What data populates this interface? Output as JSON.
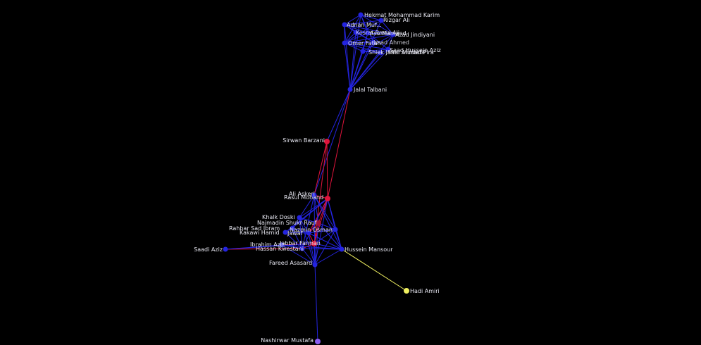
{
  "graph": {
    "colors": {
      "blue": "#2424e0",
      "red": "#e0143c",
      "yellow": "#f0f060",
      "violet": "#8a5cf0",
      "maroon": "#a0103a"
    },
    "nodes": [
      {
        "id": "hekmat",
        "label": "Hekmat Mohammad Karim",
        "color": "blue"
      },
      {
        "id": "rizgar",
        "label": "Rizgar Ali",
        "color": "blue"
      },
      {
        "id": "adnan",
        "label": "Adnan Muf...",
        "color": "blue"
      },
      {
        "id": "aso",
        "label": "Aso Mamand",
        "color": "blue"
      },
      {
        "id": "azad",
        "label": "Azad Jindiyani",
        "color": "blue"
      },
      {
        "id": "omer",
        "label": "Omer Fatah",
        "color": "blue"
      },
      {
        "id": "shiek",
        "label": "Shiek Jaffar Mustafa",
        "color": "blue"
      },
      {
        "id": "sadi",
        "label": "Sadi Ahmad Pira",
        "color": "blue"
      },
      {
        "id": "kosrat",
        "label": "Kosrat Rasul Ali",
        "color": "blue"
      },
      {
        "id": "imad",
        "label": "Imad Ahmed",
        "color": "blue"
      },
      {
        "id": "saad",
        "label": "Saad Hussein Aziz",
        "color": "blue"
      },
      {
        "id": "jalal",
        "label": "Jalal Talbani",
        "color": "blue"
      },
      {
        "id": "sirwan",
        "label": "Sirwan Barzani",
        "color": "red"
      },
      {
        "id": "ali",
        "label": "Ali Askeri",
        "color": "blue"
      },
      {
        "id": "rasul",
        "label": "Rasul Mohand",
        "color": "red"
      },
      {
        "id": "khalk",
        "label": "Khalk Doski",
        "color": "blue"
      },
      {
        "id": "najmadin",
        "label": "Najmadin Shukr Rauf",
        "color": "maroon"
      },
      {
        "id": "rahbar",
        "label": "Rahbar Sad Ibram",
        "color": "blue"
      },
      {
        "id": "nazmin",
        "label": "Nazmin Osman",
        "color": "blue"
      },
      {
        "id": "kakawi",
        "label": "Kakawi Hamid",
        "color": "blue"
      },
      {
        "id": "jawaf",
        "label": "Jawaf",
        "color": "blue"
      },
      {
        "id": "jabbar",
        "label": "Jabbar Farman",
        "color": "red"
      },
      {
        "id": "ibrahim",
        "label": "Ibrahim Aziz",
        "color": "blue"
      },
      {
        "id": "hassan",
        "label": "Hassan Kwestani",
        "color": "blue"
      },
      {
        "id": "saadi",
        "label": "Saadi Aziz",
        "color": "blue"
      },
      {
        "id": "hussein",
        "label": "Hussein Mansour",
        "color": "blue"
      },
      {
        "id": "fareed",
        "label": "Fareed Asasard",
        "color": "blue"
      },
      {
        "id": "hadi",
        "label": "Hadi Amiri",
        "color": "yellow"
      },
      {
        "id": "nashirwar",
        "label": "Nashirwar Mustafa",
        "color": "violet"
      }
    ],
    "edges": [
      {
        "from": "jalal",
        "to": "hekmat",
        "color": "blue"
      },
      {
        "from": "jalal",
        "to": "rizgar",
        "color": "blue"
      },
      {
        "from": "jalal",
        "to": "adnan",
        "color": "blue"
      },
      {
        "from": "jalal",
        "to": "aso",
        "color": "blue"
      },
      {
        "from": "jalal",
        "to": "azad",
        "color": "blue"
      },
      {
        "from": "jalal",
        "to": "omer",
        "color": "blue"
      },
      {
        "from": "jalal",
        "to": "shiek",
        "color": "blue"
      },
      {
        "from": "jalal",
        "to": "sadi",
        "color": "blue"
      },
      {
        "from": "jalal",
        "to": "kosrat",
        "color": "blue"
      },
      {
        "from": "jalal",
        "to": "imad",
        "color": "blue"
      },
      {
        "from": "jalal",
        "to": "saad",
        "color": "blue"
      },
      {
        "from": "adnan",
        "to": "hekmat",
        "color": "blue"
      },
      {
        "from": "adnan",
        "to": "rizgar",
        "color": "blue"
      },
      {
        "from": "adnan",
        "to": "aso",
        "color": "blue"
      },
      {
        "from": "adnan",
        "to": "azad",
        "color": "blue"
      },
      {
        "from": "adnan",
        "to": "omer",
        "color": "blue"
      },
      {
        "from": "adnan",
        "to": "kosrat",
        "color": "blue"
      },
      {
        "from": "adnan",
        "to": "imad",
        "color": "blue"
      },
      {
        "from": "hekmat",
        "to": "aso",
        "color": "blue"
      },
      {
        "from": "hekmat",
        "to": "azad",
        "color": "blue"
      },
      {
        "from": "hekmat",
        "to": "omer",
        "color": "blue"
      },
      {
        "from": "hekmat",
        "to": "rizgar",
        "color": "blue"
      },
      {
        "from": "rizgar",
        "to": "omer",
        "color": "blue"
      },
      {
        "from": "rizgar",
        "to": "azad",
        "color": "blue"
      },
      {
        "from": "aso",
        "to": "omer",
        "color": "blue"
      },
      {
        "from": "aso",
        "to": "azad",
        "color": "blue"
      },
      {
        "from": "aso",
        "to": "shiek",
        "color": "blue"
      },
      {
        "from": "aso",
        "to": "saad",
        "color": "blue"
      },
      {
        "from": "omer",
        "to": "shiek",
        "color": "blue"
      },
      {
        "from": "omer",
        "to": "sadi",
        "color": "blue"
      },
      {
        "from": "omer",
        "to": "azad",
        "color": "blue"
      },
      {
        "from": "omer",
        "to": "saad",
        "color": "blue"
      },
      {
        "from": "omer",
        "to": "kosrat",
        "color": "blue"
      },
      {
        "from": "shiek",
        "to": "saad",
        "color": "blue"
      },
      {
        "from": "shiek",
        "to": "sadi",
        "color": "blue"
      },
      {
        "from": "shiek",
        "to": "azad",
        "color": "blue"
      },
      {
        "from": "sadi",
        "to": "saad",
        "color": "blue"
      },
      {
        "from": "kosrat",
        "to": "imad",
        "color": "blue"
      },
      {
        "from": "kosrat",
        "to": "aso",
        "color": "blue"
      },
      {
        "from": "imad",
        "to": "omer",
        "color": "blue"
      },
      {
        "from": "imad",
        "to": "hekmat",
        "color": "blue"
      },
      {
        "from": "azad",
        "to": "saad",
        "color": "blue"
      },
      {
        "from": "jalal",
        "to": "sirwan",
        "color": "blue"
      },
      {
        "from": "jalal",
        "to": "rasul",
        "color": "red"
      },
      {
        "from": "jalal",
        "to": "ali",
        "color": "blue"
      },
      {
        "from": "sirwan",
        "to": "rasul",
        "color": "red"
      },
      {
        "from": "sirwan",
        "to": "ali",
        "color": "red"
      },
      {
        "from": "sirwan",
        "to": "jabbar",
        "color": "red"
      },
      {
        "from": "rasul",
        "to": "ali",
        "color": "red"
      },
      {
        "from": "rasul",
        "to": "khalk",
        "color": "blue"
      },
      {
        "from": "rasul",
        "to": "najmadin",
        "color": "red"
      },
      {
        "from": "rasul",
        "to": "nazmin",
        "color": "blue"
      },
      {
        "from": "rasul",
        "to": "jabbar",
        "color": "red"
      },
      {
        "from": "rasul",
        "to": "hassan",
        "color": "blue"
      },
      {
        "from": "rasul",
        "to": "hussein",
        "color": "blue"
      },
      {
        "from": "rasul",
        "to": "fareed",
        "color": "blue"
      },
      {
        "from": "rasul",
        "to": "rahbar",
        "color": "blue"
      },
      {
        "from": "rasul",
        "to": "jawaf",
        "color": "red"
      },
      {
        "from": "rasul",
        "to": "kakawi",
        "color": "blue"
      },
      {
        "from": "ali",
        "to": "khalk",
        "color": "blue"
      },
      {
        "from": "ali",
        "to": "najmadin",
        "color": "blue"
      },
      {
        "from": "ali",
        "to": "nazmin",
        "color": "blue"
      },
      {
        "from": "ali",
        "to": "hussein",
        "color": "blue"
      },
      {
        "from": "ali",
        "to": "fareed",
        "color": "blue"
      },
      {
        "from": "ali",
        "to": "hassan",
        "color": "blue"
      },
      {
        "from": "khalk",
        "to": "najmadin",
        "color": "blue"
      },
      {
        "from": "khalk",
        "to": "jawaf",
        "color": "blue"
      },
      {
        "from": "khalk",
        "to": "rahbar",
        "color": "blue"
      },
      {
        "from": "najmadin",
        "to": "nazmin",
        "color": "blue"
      },
      {
        "from": "najmadin",
        "to": "jawaf",
        "color": "red"
      },
      {
        "from": "najmadin",
        "to": "jabbar",
        "color": "red"
      },
      {
        "from": "najmadin",
        "to": "hussein",
        "color": "blue"
      },
      {
        "from": "najmadin",
        "to": "fareed",
        "color": "blue"
      },
      {
        "from": "rahbar",
        "to": "kakawi",
        "color": "blue"
      },
      {
        "from": "rahbar",
        "to": "jawaf",
        "color": "blue"
      },
      {
        "from": "rahbar",
        "to": "hassan",
        "color": "blue"
      },
      {
        "from": "nazmin",
        "to": "jawaf",
        "color": "blue"
      },
      {
        "from": "nazmin",
        "to": "hussein",
        "color": "blue"
      },
      {
        "from": "nazmin",
        "to": "jabbar",
        "color": "blue"
      },
      {
        "from": "nazmin",
        "to": "fareed",
        "color": "blue"
      },
      {
        "from": "kakawi",
        "to": "jawaf",
        "color": "blue"
      },
      {
        "from": "kakawi",
        "to": "hassan",
        "color": "blue"
      },
      {
        "from": "jawaf",
        "to": "jabbar",
        "color": "red"
      },
      {
        "from": "jawaf",
        "to": "hussein",
        "color": "blue"
      },
      {
        "from": "jawaf",
        "to": "fareed",
        "color": "blue"
      },
      {
        "from": "jabbar",
        "to": "hassan",
        "color": "red"
      },
      {
        "from": "jabbar",
        "to": "hussein",
        "color": "blue"
      },
      {
        "from": "jabbar",
        "to": "fareed",
        "color": "blue"
      },
      {
        "from": "jabbar",
        "to": "ibrahim",
        "color": "red"
      },
      {
        "from": "ibrahim",
        "to": "hassan",
        "color": "blue"
      },
      {
        "from": "ibrahim",
        "to": "fareed",
        "color": "blue"
      },
      {
        "from": "ibrahim",
        "to": "hussein",
        "color": "blue"
      },
      {
        "from": "saadi",
        "to": "ibrahim",
        "color": "blue"
      },
      {
        "from": "saadi",
        "to": "hassan",
        "color": "red"
      },
      {
        "from": "saadi",
        "to": "jabbar",
        "color": "blue"
      },
      {
        "from": "hassan",
        "to": "hussein",
        "color": "blue"
      },
      {
        "from": "hassan",
        "to": "fareed",
        "color": "blue"
      },
      {
        "from": "hussein",
        "to": "fareed",
        "color": "blue"
      },
      {
        "from": "hussein",
        "to": "hadi",
        "color": "yellow"
      },
      {
        "from": "fareed",
        "to": "nashirwar",
        "color": "blue"
      },
      {
        "from": "khalk",
        "to": "hassan",
        "color": "blue"
      },
      {
        "from": "khalk",
        "to": "fareed",
        "color": "blue"
      }
    ]
  }
}
